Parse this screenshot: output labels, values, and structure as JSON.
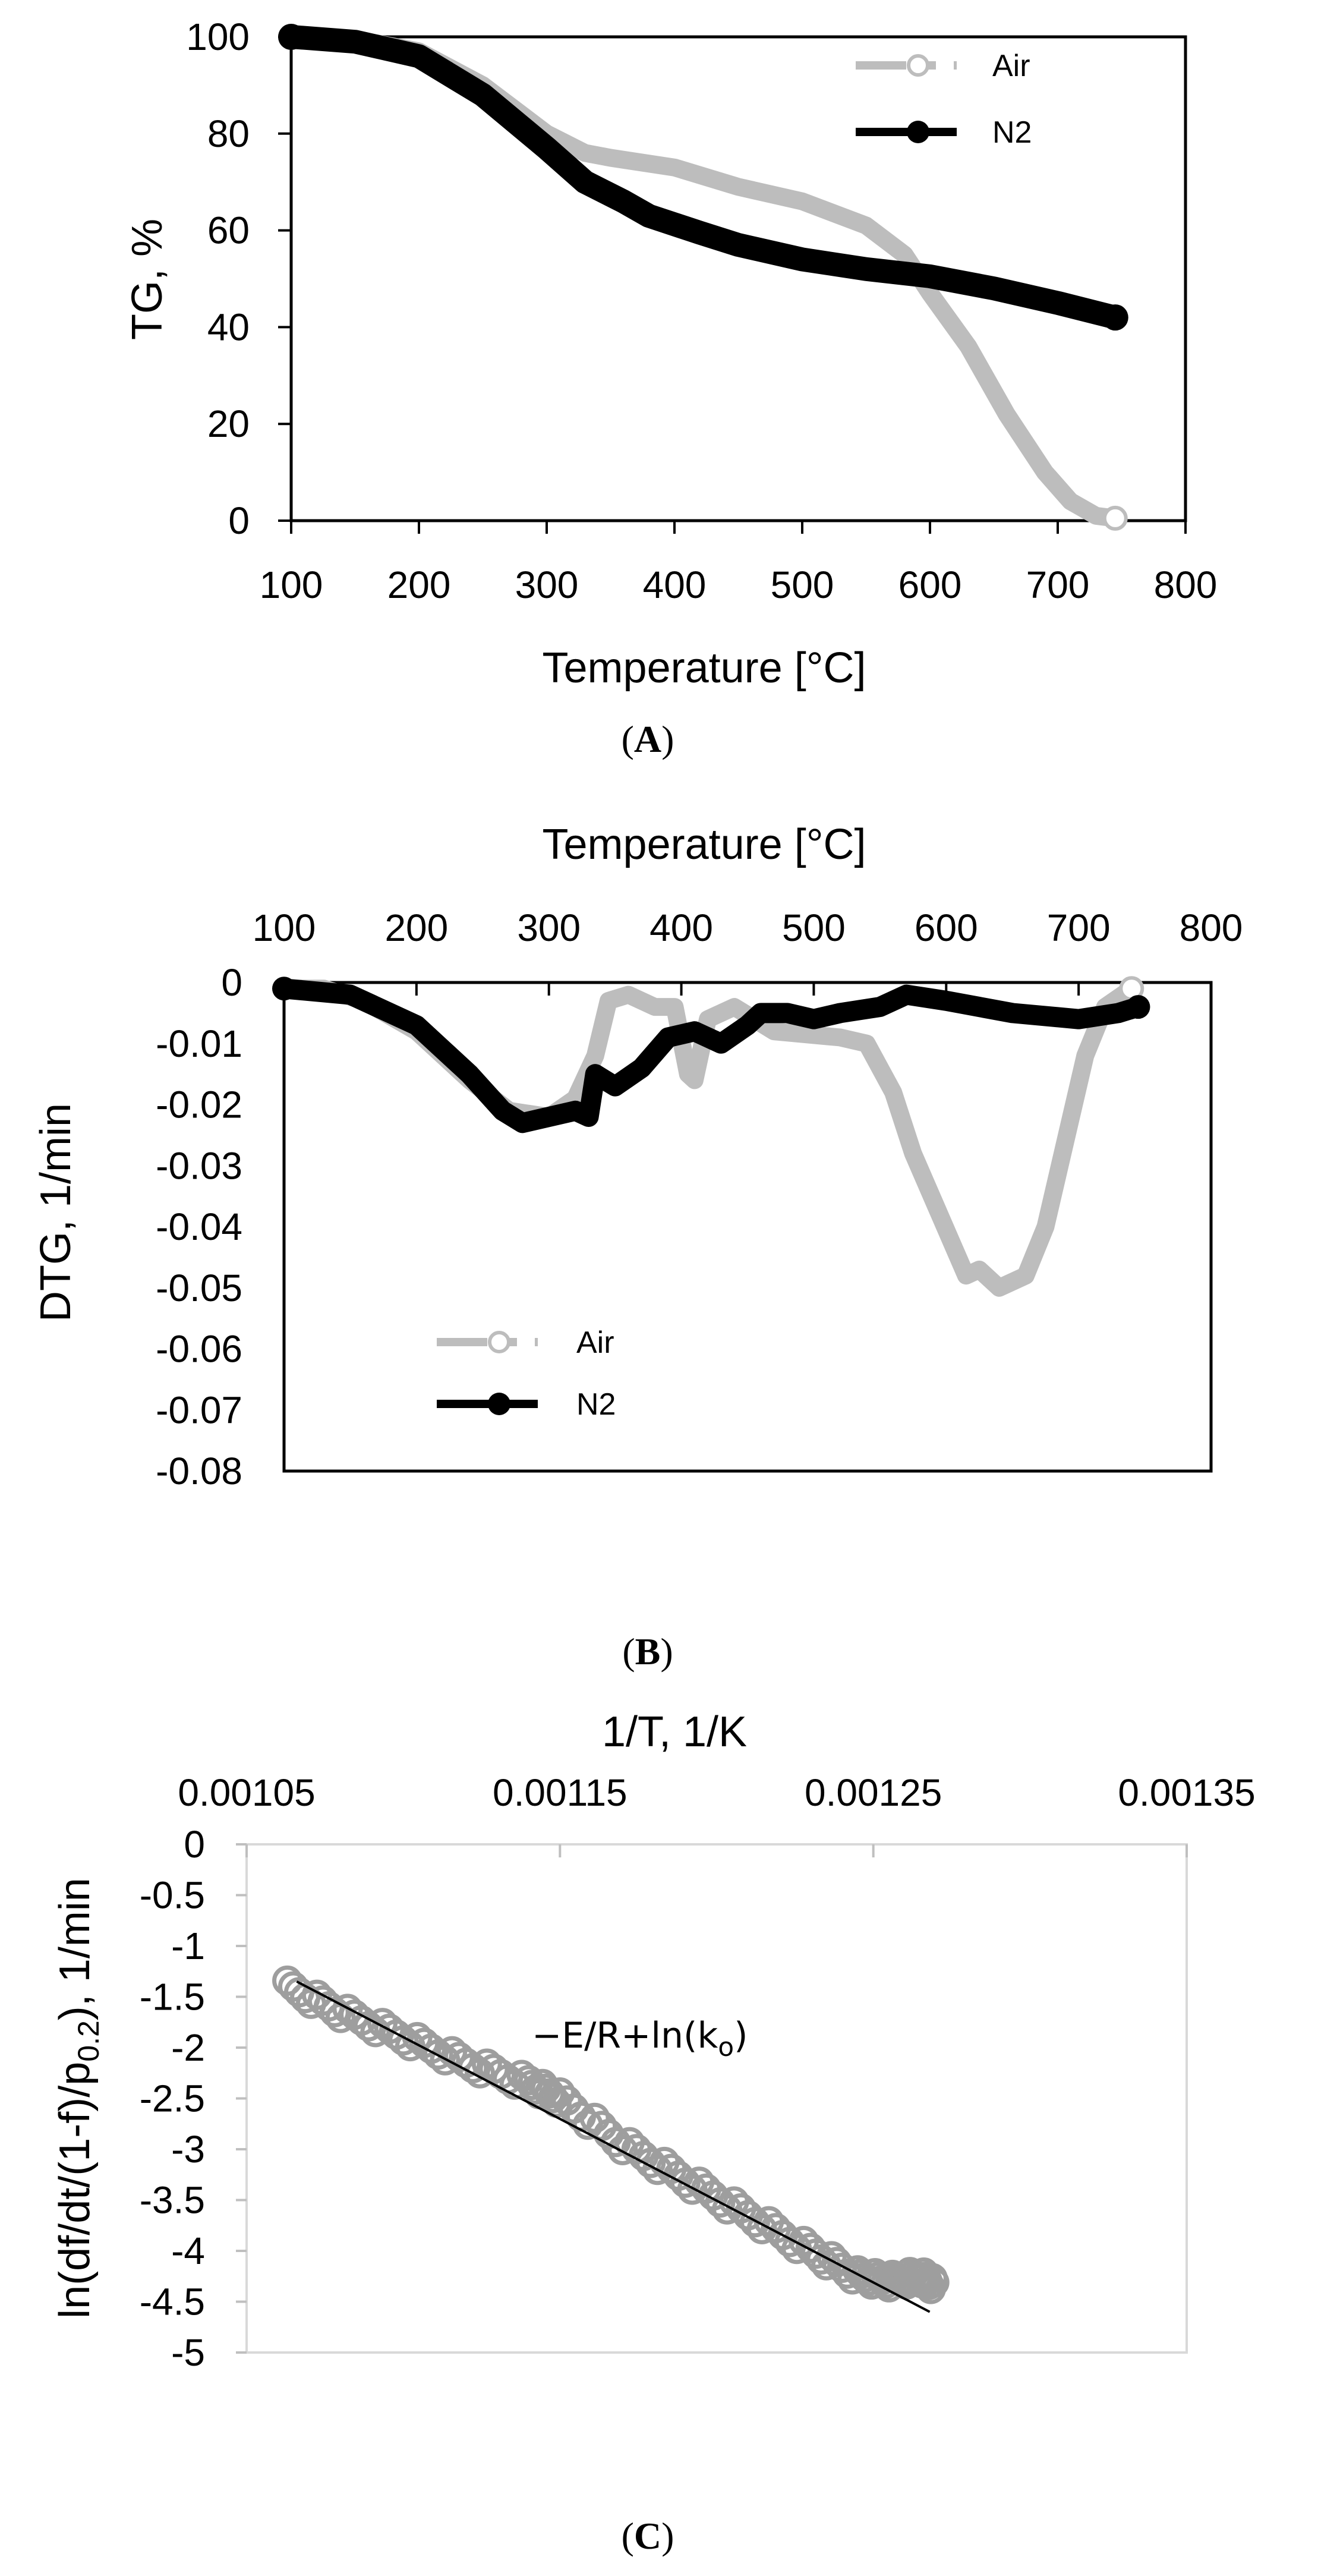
{
  "colors": {
    "air": "#bdbdbd",
    "n2": "#000000",
    "arrhenius_points": "#9e9e9e",
    "fit_line": "#000000"
  },
  "chart_data": [
    {
      "id": "A",
      "type": "line",
      "caption": "A",
      "xlabel": "Temperature [°C]",
      "ylabel": "TG, %",
      "xlim": [
        100,
        800
      ],
      "ylim": [
        0,
        100
      ],
      "xticks": [
        100,
        200,
        300,
        400,
        500,
        600,
        700,
        800
      ],
      "yticks": [
        0,
        20,
        40,
        60,
        80,
        100
      ],
      "legend_position": "top-right",
      "series": [
        {
          "name": "Air",
          "color": "#bdbdbd",
          "points": [
            [
              100,
              100
            ],
            [
              150,
              99.5
            ],
            [
              200,
              97
            ],
            [
              250,
              90
            ],
            [
              300,
              80
            ],
            [
              330,
              76
            ],
            [
              350,
              75
            ],
            [
              400,
              73
            ],
            [
              450,
              69
            ],
            [
              500,
              66
            ],
            [
              550,
              61
            ],
            [
              580,
              55
            ],
            [
              600,
              47
            ],
            [
              630,
              36
            ],
            [
              660,
              22
            ],
            [
              690,
              10
            ],
            [
              710,
              4
            ],
            [
              730,
              1
            ],
            [
              745,
              0.5
            ]
          ]
        },
        {
          "name": "N2",
          "color": "#000000",
          "points": [
            [
              100,
              100
            ],
            [
              150,
              99
            ],
            [
              200,
              96
            ],
            [
              250,
              88
            ],
            [
              300,
              77
            ],
            [
              330,
              70
            ],
            [
              360,
              66
            ],
            [
              380,
              63
            ],
            [
              420,
              59.5
            ],
            [
              450,
              57
            ],
            [
              500,
              54
            ],
            [
              550,
              52
            ],
            [
              600,
              50.5
            ],
            [
              650,
              48
            ],
            [
              700,
              45
            ],
            [
              745,
              42
            ]
          ]
        }
      ]
    },
    {
      "id": "B",
      "type": "line",
      "caption": "B",
      "xlabel": "Temperature [°C]",
      "ylabel": "DTG, 1/min",
      "xlim": [
        100,
        800
      ],
      "ylim": [
        -0.08,
        0
      ],
      "xticks": [
        100,
        200,
        300,
        400,
        500,
        600,
        700,
        800
      ],
      "yticks": [
        0,
        -0.01,
        -0.02,
        -0.03,
        -0.04,
        -0.05,
        -0.06,
        -0.07,
        -0.08
      ],
      "x_axis_position": "top",
      "legend_position": "bottom-left",
      "series": [
        {
          "name": "Air",
          "color": "#bdbdbd",
          "points": [
            [
              100,
              -0.001
            ],
            [
              130,
              -0.001
            ],
            [
              160,
              -0.003
            ],
            [
              200,
              -0.008
            ],
            [
              240,
              -0.016
            ],
            [
              270,
              -0.021
            ],
            [
              300,
              -0.022
            ],
            [
              320,
              -0.019
            ],
            [
              335,
              -0.012
            ],
            [
              345,
              -0.003
            ],
            [
              360,
              -0.002
            ],
            [
              380,
              -0.004
            ],
            [
              395,
              -0.004
            ],
            [
              405,
              -0.015
            ],
            [
              410,
              -0.016
            ],
            [
              420,
              -0.006
            ],
            [
              440,
              -0.004
            ],
            [
              470,
              -0.008
            ],
            [
              520,
              -0.009
            ],
            [
              540,
              -0.01
            ],
            [
              560,
              -0.018
            ],
            [
              575,
              -0.028
            ],
            [
              595,
              -0.038
            ],
            [
              615,
              -0.048
            ],
            [
              625,
              -0.047
            ],
            [
              640,
              -0.05
            ],
            [
              660,
              -0.048
            ],
            [
              675,
              -0.04
            ],
            [
              690,
              -0.026
            ],
            [
              705,
              -0.012
            ],
            [
              720,
              -0.004
            ],
            [
              740,
              -0.001
            ]
          ]
        },
        {
          "name": "N2",
          "color": "#000000",
          "points": [
            [
              100,
              -0.001
            ],
            [
              150,
              -0.002
            ],
            [
              200,
              -0.007
            ],
            [
              240,
              -0.015
            ],
            [
              265,
              -0.021
            ],
            [
              280,
              -0.023
            ],
            [
              300,
              -0.022
            ],
            [
              320,
              -0.021
            ],
            [
              330,
              -0.022
            ],
            [
              335,
              -0.015
            ],
            [
              350,
              -0.017
            ],
            [
              370,
              -0.014
            ],
            [
              390,
              -0.009
            ],
            [
              410,
              -0.008
            ],
            [
              430,
              -0.01
            ],
            [
              450,
              -0.007
            ],
            [
              460,
              -0.005
            ],
            [
              480,
              -0.005
            ],
            [
              500,
              -0.006
            ],
            [
              520,
              -0.005
            ],
            [
              550,
              -0.004
            ],
            [
              570,
              -0.002
            ],
            [
              600,
              -0.003
            ],
            [
              650,
              -0.005
            ],
            [
              700,
              -0.006
            ],
            [
              730,
              -0.005
            ],
            [
              745,
              -0.004
            ]
          ]
        }
      ]
    },
    {
      "id": "C",
      "type": "scatter",
      "caption": "C",
      "xlabel": "1/T, 1/K",
      "ylabel": "ln(df/dt/(1-f)/p0.2), 1/min",
      "ylabel_main": "ln(df/dt/(1-f)/p",
      "ylabel_sub": "0.2",
      "ylabel_tail": "), 1/min",
      "xlim": [
        0.00105,
        0.00135
      ],
      "ylim": [
        -5,
        0
      ],
      "xticks": [
        "0.00105",
        "0.00115",
        "0.00125",
        "0.00135"
      ],
      "yticks": [
        "0",
        "-0.5",
        "-1",
        "-1.5",
        "-2",
        "-2.5",
        "-3",
        "-3.5",
        "-4",
        "-4.5",
        "-5"
      ],
      "x_axis_position": "top",
      "annotation_main": "−E/R+ln(k",
      "annotation_sub": "o",
      "annotation_tail": ")",
      "fit_line": {
        "x0": 0.001066,
        "y0": -1.35,
        "x1": 0.001268,
        "y1": -4.6
      },
      "points_band": [
        [
          0.001063,
          -1.4
        ],
        [
          0.00108,
          -1.65
        ],
        [
          0.0011,
          -1.9
        ],
        [
          0.00112,
          -2.15
        ],
        [
          0.00114,
          -2.35
        ],
        [
          0.00115,
          -2.5
        ],
        [
          0.00117,
          -2.95
        ],
        [
          0.00119,
          -3.3
        ],
        [
          0.00121,
          -3.65
        ],
        [
          0.00123,
          -4.0
        ],
        [
          0.001245,
          -4.25
        ],
        [
          0.001255,
          -4.3
        ],
        [
          0.001265,
          -4.25
        ],
        [
          0.00127,
          -4.35
        ]
      ]
    }
  ]
}
